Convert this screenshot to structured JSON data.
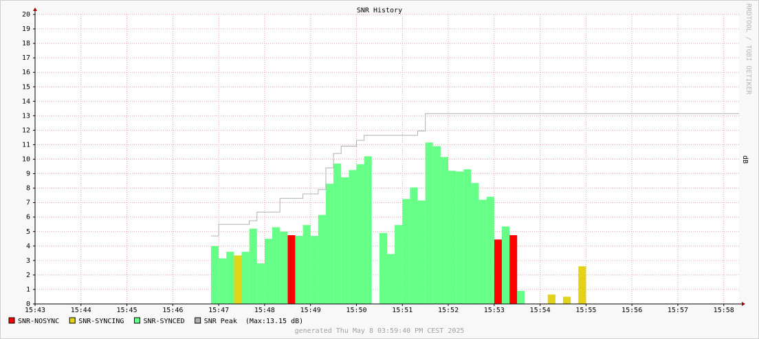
{
  "chart_data": {
    "type": "bar",
    "title": "SNR History",
    "y_label": "dB",
    "watermark": "RRDTOOL / TOBI OETIKER",
    "footer": "generated Thu May  8 03:59:40 PM CEST 2025",
    "peak_note": "(Max:13.15 dB)",
    "grid": true,
    "ylim": [
      0,
      20
    ],
    "yticks": [
      0,
      1,
      2,
      3,
      4,
      5,
      6,
      7,
      8,
      9,
      10,
      11,
      12,
      13,
      14,
      15,
      16,
      17,
      18,
      19,
      20
    ],
    "xlim": [
      43,
      58.3333
    ],
    "xticks": [
      {
        "value": 43,
        "label": "15:43"
      },
      {
        "value": 44,
        "label": "15:44"
      },
      {
        "value": 45,
        "label": "15:45"
      },
      {
        "value": 46,
        "label": "15:46"
      },
      {
        "value": 47,
        "label": "15:47"
      },
      {
        "value": 48,
        "label": "15:48"
      },
      {
        "value": 49,
        "label": "15:49"
      },
      {
        "value": 50,
        "label": "15:50"
      },
      {
        "value": 51,
        "label": "15:51"
      },
      {
        "value": 52,
        "label": "15:52"
      },
      {
        "value": 53,
        "label": "15:53"
      },
      {
        "value": 54,
        "label": "15:54"
      },
      {
        "value": 55,
        "label": "15:55"
      },
      {
        "value": 56,
        "label": "15:56"
      },
      {
        "value": 57,
        "label": "15:57"
      },
      {
        "value": 58,
        "label": "15:58"
      }
    ],
    "series": [
      {
        "name": "SNR-NOSYNC",
        "color": "#ff0000",
        "x": [
          48.5,
          53,
          53.3333
        ],
        "values": [
          4.75,
          4.45,
          4.75
        ]
      },
      {
        "name": "SNR-SYNCING",
        "color": "#e2d31a",
        "x": [
          47.3333,
          54.1667,
          54.5,
          54.8333
        ],
        "values": [
          3.35,
          0.65,
          0.5,
          2.6
        ]
      },
      {
        "name": "SNR-SYNCED",
        "color": "#66ff88",
        "x": [
          46.8333,
          47,
          47.1667,
          47.5,
          47.6667,
          47.8333,
          48,
          48.1667,
          48.3333,
          48.6667,
          48.8333,
          49,
          49.1667,
          49.3333,
          49.5,
          49.6667,
          49.8333,
          50,
          50.1667,
          50.5,
          50.6667,
          50.8333,
          51,
          51.1667,
          51.3333,
          51.5,
          51.6667,
          51.8333,
          52,
          52.1667,
          52.3333,
          52.5,
          52.6667,
          52.8333,
          53.1667,
          53.5
        ],
        "values": [
          4.0,
          3.15,
          3.6,
          3.6,
          5.2,
          2.8,
          4.5,
          5.3,
          5.0,
          4.7,
          5.45,
          4.7,
          6.15,
          8.3,
          9.7,
          8.75,
          9.25,
          9.65,
          10.2,
          4.9,
          3.45,
          5.45,
          7.25,
          8.05,
          7.15,
          11.15,
          10.9,
          10.15,
          9.2,
          9.15,
          9.3,
          8.35,
          7.2,
          7.4,
          5.35,
          0.9
        ]
      },
      {
        "name": "SNR Peak",
        "color": "#b0b0b0",
        "kind": "step",
        "x": [
          46.8333,
          47,
          47.6667,
          47.8333,
          48.3333,
          48.8333,
          49.1667,
          49.3333,
          49.5,
          49.6667,
          50,
          50.1667,
          51.3333,
          51.5,
          58.3333
        ],
        "values": [
          4.7,
          5.5,
          5.75,
          6.35,
          7.3,
          7.6,
          7.9,
          9.4,
          10.4,
          10.9,
          11.3,
          11.65,
          11.95,
          13.15,
          13.15
        ]
      }
    ]
  }
}
